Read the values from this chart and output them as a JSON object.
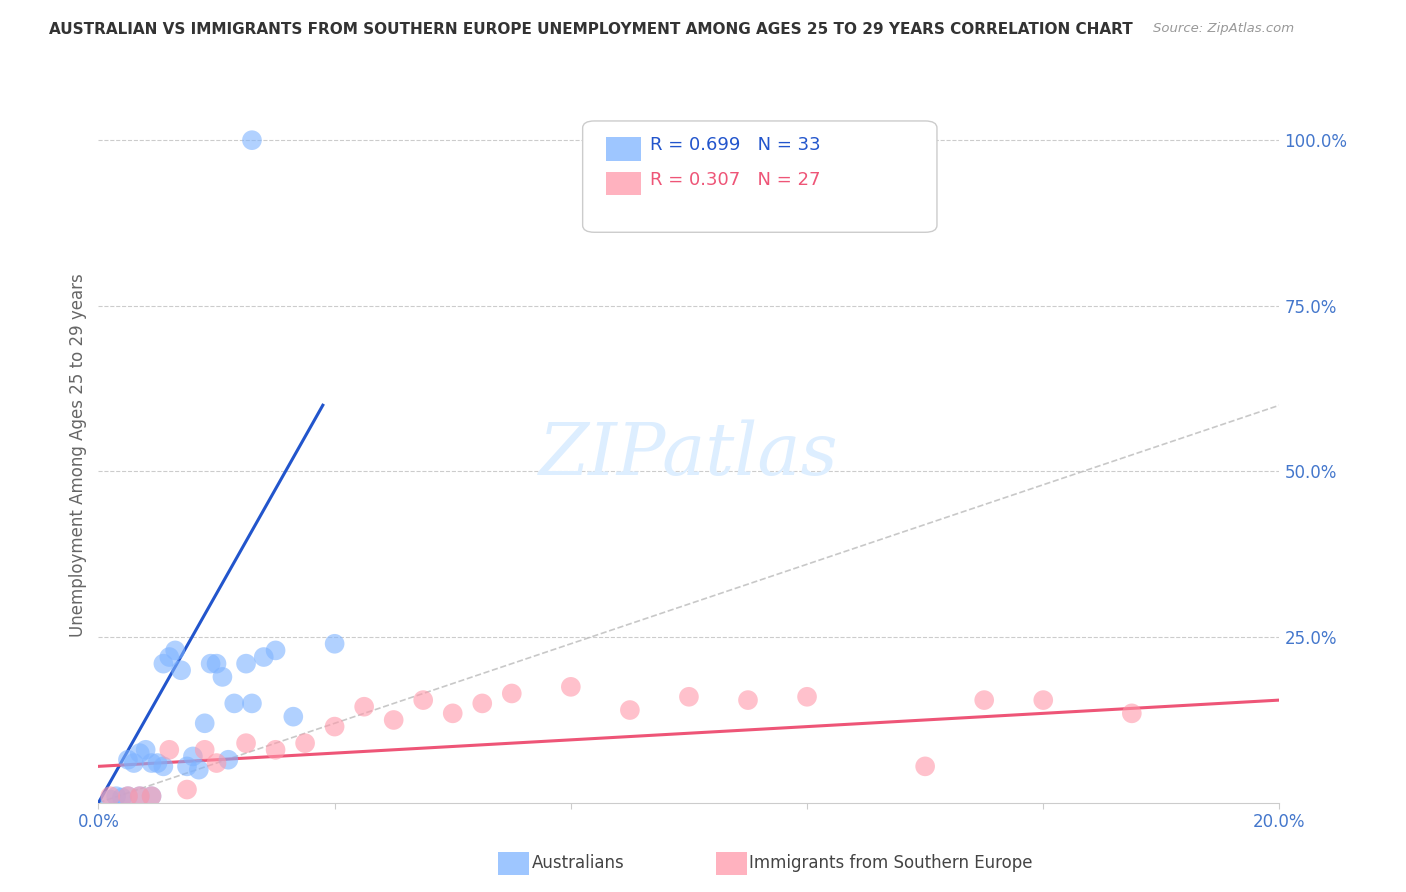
{
  "title": "AUSTRALIAN VS IMMIGRANTS FROM SOUTHERN EUROPE UNEMPLOYMENT AMONG AGES 25 TO 29 YEARS CORRELATION CHART",
  "source": "Source: ZipAtlas.com",
  "ylabel": "Unemployment Among Ages 25 to 29 years",
  "xlim": [
    0.0,
    0.2
  ],
  "ylim": [
    0.0,
    1.05
  ],
  "xtick_positions": [
    0.0,
    0.04,
    0.08,
    0.12,
    0.16,
    0.2
  ],
  "xtick_labels": [
    "0.0%",
    "",
    "",
    "",
    "",
    "20.0%"
  ],
  "ytick_positions": [
    0.0,
    0.25,
    0.5,
    0.75,
    1.0
  ],
  "ytick_labels_right": [
    "",
    "25.0%",
    "50.0%",
    "75.0%",
    "100.0%"
  ],
  "legend_R_blue": "R = 0.699",
  "legend_N_blue": "N = 33",
  "legend_R_pink": "R = 0.307",
  "legend_N_pink": "N = 27",
  "legend_label_blue": "Australians",
  "legend_label_pink": "Immigrants from Southern Europe",
  "color_blue": "#7EB3FF",
  "color_pink": "#FF99AA",
  "color_blue_line": "#2255CC",
  "color_pink_line": "#EE5577",
  "color_axis_label": "#4477CC",
  "color_ylabel": "#666666",
  "background_color": "#FFFFFF",
  "blue_scatter_x": [
    0.002,
    0.003,
    0.004,
    0.005,
    0.005,
    0.006,
    0.007,
    0.007,
    0.008,
    0.009,
    0.009,
    0.01,
    0.011,
    0.011,
    0.012,
    0.013,
    0.014,
    0.015,
    0.016,
    0.017,
    0.018,
    0.019,
    0.02,
    0.021,
    0.022,
    0.023,
    0.025,
    0.026,
    0.028,
    0.03,
    0.033,
    0.04,
    0.026
  ],
  "blue_scatter_y": [
    0.005,
    0.01,
    0.008,
    0.065,
    0.01,
    0.06,
    0.075,
    0.01,
    0.08,
    0.01,
    0.06,
    0.06,
    0.21,
    0.055,
    0.22,
    0.23,
    0.2,
    0.055,
    0.07,
    0.05,
    0.12,
    0.21,
    0.21,
    0.19,
    0.065,
    0.15,
    0.21,
    0.15,
    0.22,
    0.23,
    0.13,
    0.24,
    1.0
  ],
  "pink_scatter_x": [
    0.002,
    0.005,
    0.007,
    0.009,
    0.012,
    0.015,
    0.018,
    0.02,
    0.025,
    0.03,
    0.035,
    0.04,
    0.045,
    0.05,
    0.055,
    0.06,
    0.065,
    0.07,
    0.08,
    0.09,
    0.1,
    0.11,
    0.12,
    0.14,
    0.15,
    0.16,
    0.175
  ],
  "pink_scatter_y": [
    0.01,
    0.01,
    0.01,
    0.01,
    0.08,
    0.02,
    0.08,
    0.06,
    0.09,
    0.08,
    0.09,
    0.115,
    0.145,
    0.125,
    0.155,
    0.135,
    0.15,
    0.165,
    0.175,
    0.14,
    0.16,
    0.155,
    0.16,
    0.055,
    0.155,
    0.155,
    0.135
  ],
  "blue_line_x": [
    0.0,
    0.038
  ],
  "blue_line_y": [
    0.0,
    0.6
  ],
  "pink_line_x": [
    0.0,
    0.2
  ],
  "pink_line_y": [
    0.055,
    0.155
  ],
  "diag_line_x": [
    0.0,
    0.2
  ],
  "diag_line_y": [
    0.0,
    0.6
  ],
  "watermark": "ZIPatlas",
  "watermark_color": "#DDEEFF"
}
